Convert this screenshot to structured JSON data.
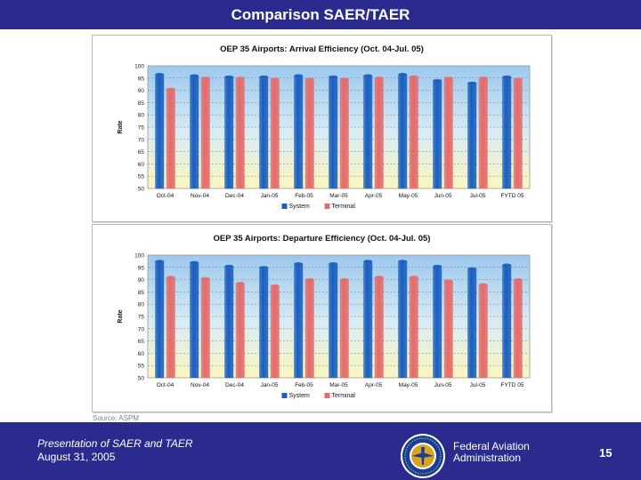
{
  "slide": {
    "title": "Comparison SAER/TAER",
    "source": "Source: ASPM",
    "footer_title": "Presentation of SAER and TAER",
    "footer_date": "August 31, 2005",
    "org_line1": "Federal Aviation",
    "org_line2": "Administration",
    "page_number": "15",
    "seal_icon": "faa-seal-icon"
  },
  "colors": {
    "system": "#1a5fbf",
    "terminal": "#e46b6b",
    "banner": "#2b2b8f"
  },
  "chart_data": [
    {
      "type": "bar",
      "title": "OEP 35 Airports: Arrival Efficiency (Oct. 04-Jul. 05)",
      "ylabel": "Rate",
      "xlabel": "",
      "ylim": [
        50,
        100
      ],
      "yticks": [
        50,
        55,
        60,
        65,
        70,
        75,
        80,
        85,
        90,
        95,
        100
      ],
      "grid": true,
      "legend": "bottom",
      "categories": [
        "Oct-04",
        "Nov-04",
        "Dec-04",
        "Jan-05",
        "Feb-05",
        "Mar-05",
        "Apr-05",
        "May-05",
        "Jun-05",
        "Jul-05",
        "FYTD 05"
      ],
      "series": [
        {
          "name": "System",
          "values": [
            96.5,
            96,
            95.5,
            95.5,
            96,
            95.5,
            96,
            96.5,
            94,
            93,
            95.5
          ]
        },
        {
          "name": "Terminal",
          "values": [
            90.5,
            95,
            95,
            94.5,
            94.5,
            94.5,
            95,
            95.5,
            95,
            95,
            94.5
          ]
        }
      ]
    },
    {
      "type": "bar",
      "title": "OEP 35 Airports: Departure Efficiency (Oct. 04-Jul. 05)",
      "ylabel": "Rate",
      "xlabel": "",
      "ylim": [
        50,
        100
      ],
      "yticks": [
        50,
        55,
        60,
        65,
        70,
        75,
        80,
        85,
        90,
        95,
        100
      ],
      "grid": true,
      "legend": "bottom",
      "categories": [
        "Oct-04",
        "Nov-04",
        "Dec-04",
        "Jan-05",
        "Feb-05",
        "Mar-05",
        "Apr-05",
        "May-05",
        "Jun-05",
        "Jul-05",
        "FYTD 05"
      ],
      "series": [
        {
          "name": "System",
          "values": [
            97.5,
            97,
            95.5,
            95,
            96.5,
            96.5,
            97.5,
            97.5,
            95.5,
            94.5,
            96
          ]
        },
        {
          "name": "Terminal",
          "values": [
            91,
            90.5,
            88.5,
            87.5,
            90,
            90,
            91,
            91,
            89.5,
            88,
            90
          ]
        }
      ]
    }
  ]
}
